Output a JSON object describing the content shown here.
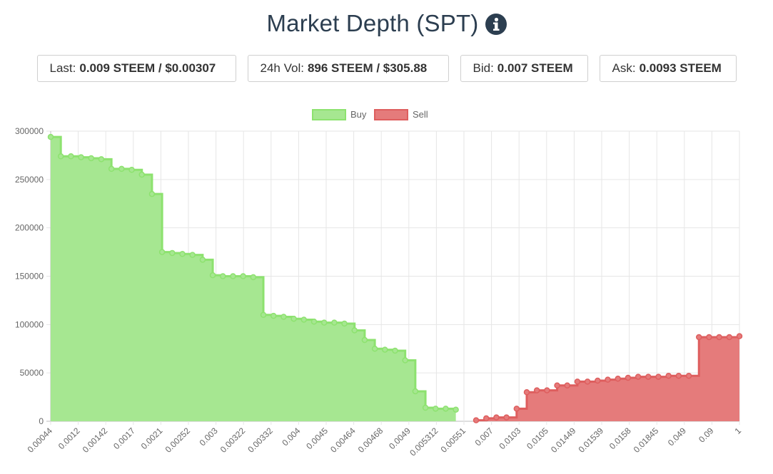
{
  "header": {
    "title": "Market Depth (SPT)",
    "info_icon": "info-icon"
  },
  "stats": {
    "last_label": "Last:",
    "last_value": "0.009 STEEM / $0.00307",
    "vol_label": "24h Vol:",
    "vol_value": "896 STEEM / $305.88",
    "bid_label": "Bid:",
    "bid_value": "0.007 STEEM",
    "ask_label": "Ask:",
    "ask_value": "0.0093 STEEM"
  },
  "colors": {
    "title": "#2c3e50",
    "buy_fill": "#a6e791",
    "buy_line": "#8de26f",
    "sell_fill": "#e57b7b",
    "sell_line": "#de5e5e"
  },
  "chart_data": {
    "type": "area",
    "style": "stepped",
    "title": "",
    "xlabel": "",
    "ylabel": "",
    "ylim": [
      0,
      300000
    ],
    "yticks": [
      0,
      50000,
      100000,
      150000,
      200000,
      250000,
      300000
    ],
    "grid": true,
    "legend_position": "top-center",
    "x_tick_labels": [
      "0.00044",
      "0.0012",
      "0.00142",
      "0.0017",
      "0.0021",
      "0.00252",
      "0.003",
      "0.00322",
      "0.00332",
      "0.004",
      "0.0045",
      "0.00464",
      "0.00468",
      "0.0049",
      "0.005312",
      "0.00551",
      "0.007",
      "0.0103",
      "0.0105",
      "0.01449",
      "0.01539",
      "0.0158",
      "0.01845",
      "0.049",
      "0.09",
      "1"
    ],
    "series": [
      {
        "name": "Buy",
        "values": [
          294000,
          274000,
          274000,
          273000,
          272000,
          271000,
          261000,
          261000,
          260000,
          255000,
          235000,
          175000,
          174000,
          173000,
          172000,
          167000,
          151000,
          150000,
          150000,
          150000,
          149000,
          110000,
          109000,
          108000,
          106000,
          105000,
          103000,
          102000,
          102000,
          101000,
          94000,
          84000,
          75000,
          74000,
          73000,
          63000,
          31000,
          14000,
          13000,
          13000,
          12000
        ]
      },
      {
        "name": "Sell",
        "values": [
          1000,
          3000,
          4000,
          4000,
          13000,
          30000,
          32000,
          32000,
          37000,
          37000,
          41000,
          41000,
          42000,
          43000,
          44000,
          45000,
          46000,
          46000,
          46000,
          47000,
          47000,
          47000,
          87000,
          87000,
          87000,
          87000,
          88000
        ]
      }
    ]
  }
}
